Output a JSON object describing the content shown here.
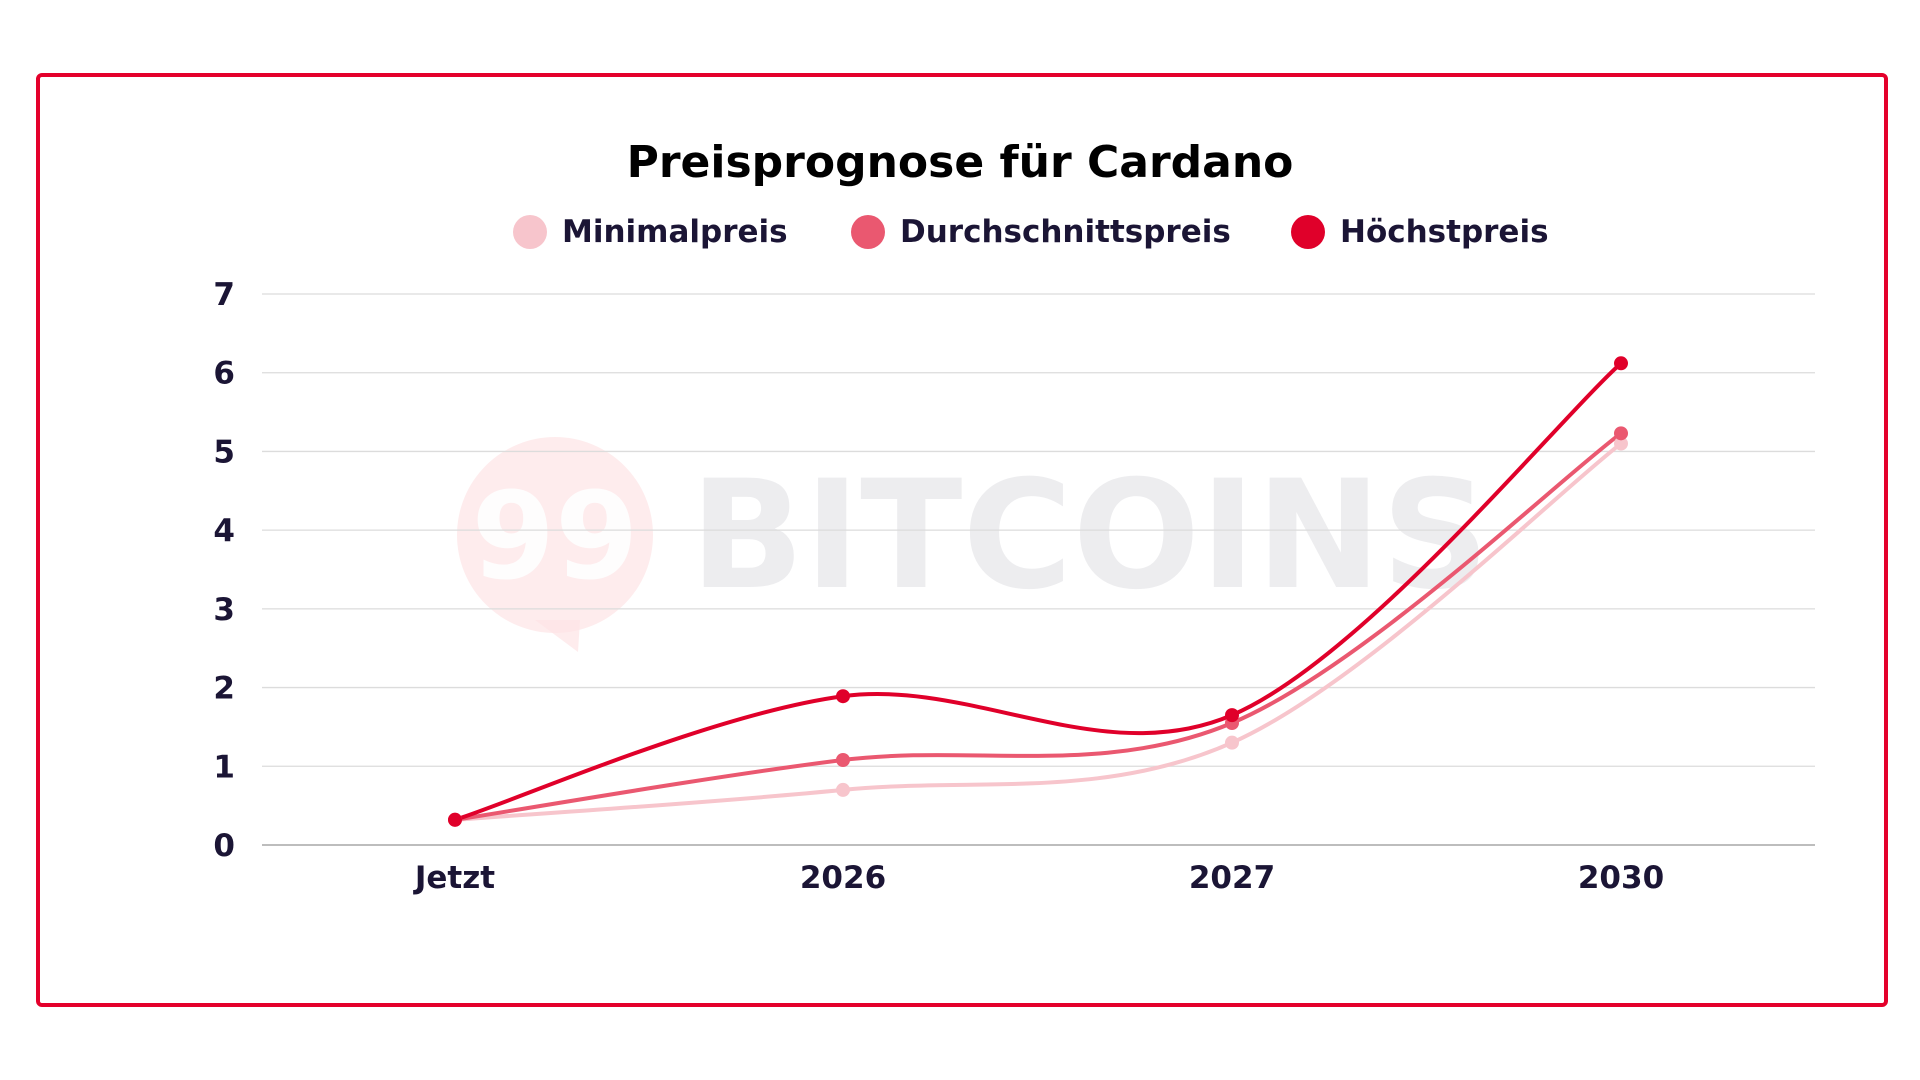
{
  "colors": {
    "frame": "#e4002b",
    "grid": "#dcdcdc",
    "axis_text": "#1b1535"
  },
  "watermark": {
    "logo_text": "99",
    "brand_text": "BITCOINS"
  },
  "chart_data": {
    "type": "line",
    "title": "Preisprognose für Cardano",
    "xlabel": "",
    "ylabel": "",
    "categories": [
      "Jetzt",
      "2026",
      "2027",
      "2030"
    ],
    "ylim": [
      0,
      7
    ],
    "yticks": [
      "0",
      "1",
      "2",
      "3",
      "4",
      "5",
      "6",
      "7"
    ],
    "grid": true,
    "legend_position": "top",
    "series": [
      {
        "name": "Minimalpreis",
        "color": "#f7c5cc",
        "values": [
          0.32,
          0.7,
          1.3,
          5.1
        ]
      },
      {
        "name": "Durchschnittspreis",
        "color": "#ea5870",
        "values": [
          0.32,
          1.08,
          1.55,
          5.23
        ]
      },
      {
        "name": "Höchstpreis",
        "color": "#e0002a",
        "values": [
          0.32,
          1.89,
          1.65,
          6.12
        ]
      }
    ]
  }
}
